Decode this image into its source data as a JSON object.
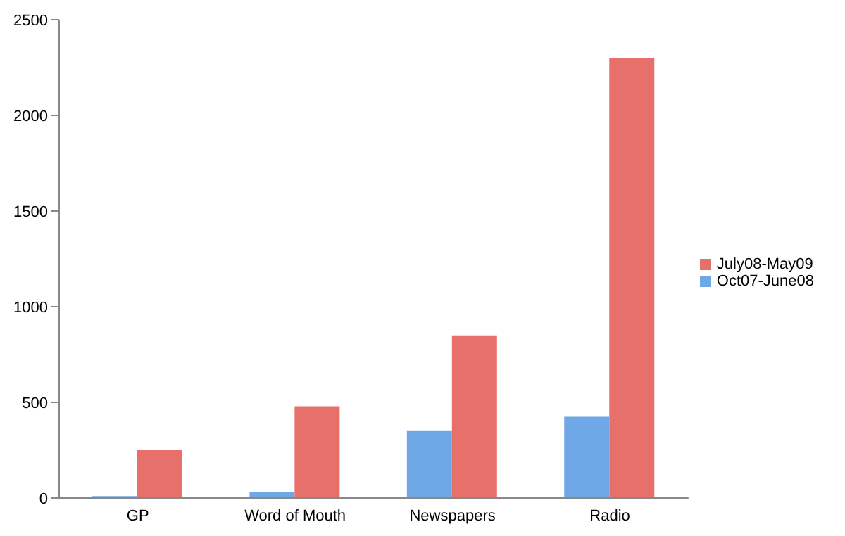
{
  "chart_data": {
    "type": "bar",
    "categories": [
      "GP",
      "Word of Mouth",
      "Newspapers",
      "Radio"
    ],
    "series": [
      {
        "name": "Oct07-June08",
        "color": "#6fa8e6",
        "values": [
          10,
          30,
          350,
          425
        ]
      },
      {
        "name": "July08-May09",
        "color": "#e8706a",
        "values": [
          250,
          480,
          850,
          2300
        ]
      }
    ],
    "ylim": [
      0,
      2500
    ],
    "yticks": [
      0,
      500,
      1000,
      1500,
      2000,
      2500
    ],
    "grid": false,
    "legend": "right"
  }
}
